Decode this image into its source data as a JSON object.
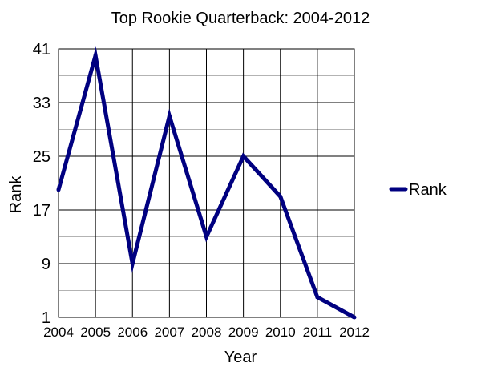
{
  "chart_data": {
    "type": "line",
    "title": "Top Rookie Quarterback: 2004-2012",
    "xlabel": "Year",
    "ylabel": "Rank",
    "categories": [
      "2004",
      "2005",
      "2006",
      "2007",
      "2008",
      "2009",
      "2010",
      "2011",
      "2012"
    ],
    "series": [
      {
        "name": "Rank",
        "values": [
          20,
          40,
          9,
          31,
          13,
          25,
          19,
          4,
          1
        ],
        "color": "#000080"
      }
    ],
    "ylim": [
      1,
      41
    ],
    "yticks": [
      1,
      9,
      17,
      25,
      33,
      41
    ],
    "y_minor_step": 4,
    "grid": true,
    "legend": "right"
  }
}
